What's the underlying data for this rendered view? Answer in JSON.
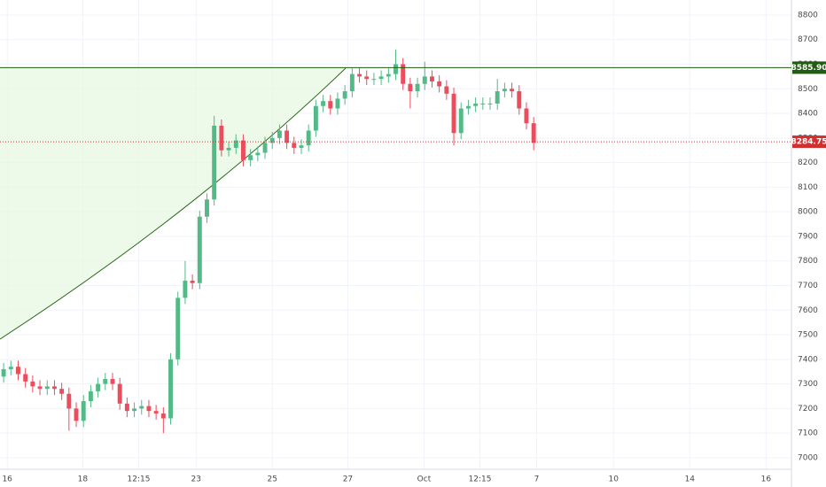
{
  "chart_data": {
    "type": "candlestick",
    "x": [
      0,
      1,
      2,
      3,
      4,
      5,
      6,
      7,
      8,
      9,
      10,
      11,
      12,
      13,
      14,
      15,
      16,
      17,
      18,
      19,
      20,
      21,
      22,
      23,
      24,
      25,
      26,
      27,
      28,
      29,
      30,
      31,
      32,
      33,
      34,
      35,
      36,
      37,
      38,
      39,
      40,
      41,
      42,
      43,
      44,
      45,
      46,
      47,
      48,
      49,
      50,
      51,
      52,
      53,
      54,
      55,
      56,
      57,
      58,
      59,
      60,
      61,
      62,
      63,
      64,
      65,
      66,
      67,
      68,
      69,
      70,
      71,
      72,
      73
    ],
    "open": [
      7330,
      7360,
      7370,
      7340,
      7310,
      7290,
      7280,
      7290,
      7280,
      7260,
      7200,
      7150,
      7230,
      7270,
      7300,
      7320,
      7300,
      7220,
      7190,
      7200,
      7210,
      7190,
      7180,
      7160,
      7400,
      7650,
      7720,
      7710,
      7980,
      8050,
      8350,
      8250,
      8260,
      8290,
      8210,
      8230,
      8240,
      8280,
      8300,
      8330,
      8280,
      8260,
      8270,
      8330,
      8430,
      8450,
      8420,
      8460,
      8490,
      8560,
      8550,
      8540,
      8540,
      8550,
      8560,
      8600,
      8520,
      8490,
      8520,
      8550,
      8530,
      8510,
      8480,
      8320,
      8420,
      8430,
      8440,
      8440,
      8440,
      8490,
      8500,
      8490,
      8420,
      8360
    ],
    "high": [
      7385,
      7395,
      7395,
      7365,
      7335,
      7315,
      7315,
      7315,
      7305,
      7285,
      7225,
      7255,
      7295,
      7325,
      7345,
      7345,
      7325,
      7245,
      7225,
      7235,
      7235,
      7215,
      7205,
      7425,
      7675,
      7800,
      7745,
      8005,
      8075,
      8390,
      8375,
      8285,
      8315,
      8315,
      8255,
      8265,
      8305,
      8325,
      8355,
      8355,
      8305,
      8295,
      8355,
      8455,
      8475,
      8475,
      8485,
      8515,
      8585,
      8585,
      8575,
      8565,
      8575,
      8585,
      8660,
      8625,
      8545,
      8545,
      8610,
      8575,
      8555,
      8535,
      8505,
      8445,
      8455,
      8465,
      8465,
      8465,
      8540,
      8525,
      8525,
      8515,
      8445,
      8385
    ],
    "low": [
      7305,
      7335,
      7315,
      7285,
      7265,
      7255,
      7255,
      7255,
      7235,
      7110,
      7125,
      7125,
      7205,
      7245,
      7275,
      7275,
      7195,
      7165,
      7165,
      7175,
      7165,
      7155,
      7100,
      7135,
      7375,
      7625,
      7685,
      7685,
      7955,
      8025,
      8225,
      8225,
      8235,
      8185,
      8185,
      8205,
      8215,
      8255,
      8275,
      8255,
      8235,
      8235,
      8245,
      8305,
      8405,
      8395,
      8395,
      8435,
      8465,
      8525,
      8515,
      8515,
      8515,
      8525,
      8535,
      8495,
      8420,
      8465,
      8495,
      8505,
      8485,
      8455,
      8270,
      8295,
      8395,
      8405,
      8415,
      8415,
      8415,
      8465,
      8465,
      8395,
      8335,
      8250
    ],
    "close": [
      7360,
      7370,
      7340,
      7310,
      7290,
      7280,
      7290,
      7280,
      7260,
      7200,
      7150,
      7230,
      7270,
      7300,
      7320,
      7300,
      7220,
      7190,
      7200,
      7210,
      7190,
      7180,
      7160,
      7400,
      7650,
      7720,
      7710,
      7980,
      8050,
      8350,
      8250,
      8260,
      8290,
      8210,
      8230,
      8240,
      8280,
      8300,
      8330,
      8280,
      8260,
      8270,
      8330,
      8430,
      8450,
      8420,
      8460,
      8490,
      8560,
      8550,
      8540,
      8540,
      8550,
      8560,
      8600,
      8520,
      8490,
      8520,
      8550,
      8530,
      8510,
      8480,
      8320,
      8420,
      8430,
      8440,
      8440,
      8440,
      8490,
      8500,
      8490,
      8420,
      8360,
      8280
    ],
    "up_color": "#53b987",
    "down_color": "#eb4d5c",
    "xlim": [
      -0.5,
      108.5
    ],
    "xticks": [
      {
        "value": 0.5,
        "label": "16"
      },
      {
        "value": 10.9,
        "label": "18"
      },
      {
        "value": 18.6,
        "label": "12:15"
      },
      {
        "value": 26.5,
        "label": "23"
      },
      {
        "value": 37,
        "label": "25"
      },
      {
        "value": 47.4,
        "label": "27"
      },
      {
        "value": 57.9,
        "label": "Oct"
      },
      {
        "value": 65.6,
        "label": "12:15"
      },
      {
        "value": 73.4,
        "label": "7"
      },
      {
        "value": 84,
        "label": "10"
      },
      {
        "value": 94.5,
        "label": "14"
      },
      {
        "value": 105,
        "label": "16"
      }
    ],
    "ylim": [
      6953,
      8861
    ],
    "yticks": [
      7000,
      7100,
      7200,
      7300,
      7400,
      7500,
      7600,
      7700,
      7800,
      7900,
      8000,
      8100,
      8200,
      8300,
      8400,
      8500,
      8600,
      8700,
      8800
    ],
    "grid": true,
    "levels": [
      {
        "value": 8585.9,
        "label": "8585.90",
        "color": "#215c12",
        "style": "solid"
      },
      {
        "value": 8284.75,
        "label": "8284.75",
        "color": "#d32f2f",
        "style": "dotted"
      }
    ]
  }
}
